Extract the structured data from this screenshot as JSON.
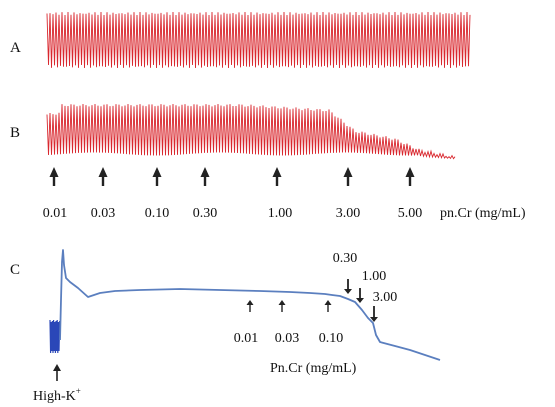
{
  "panels": {
    "a": {
      "label": "A"
    },
    "b": {
      "label": "B"
    },
    "c": {
      "label": "C"
    }
  },
  "colors": {
    "trace_red": "#d9272e",
    "trace_blue": "#5b7fbf",
    "burst_blue": "#2a47b8",
    "arrow": "#222222"
  },
  "chart_data": [
    {
      "type": "line",
      "panel": "A",
      "description_kind": "contraction trace",
      "relative_amplitude": [
        1,
        1
      ],
      "time": [
        0,
        1
      ]
    },
    {
      "type": "line",
      "panel": "B",
      "doses": [
        "0.01",
        "0.03",
        "0.10",
        "0.30",
        "1.00",
        "3.00",
        "5.00"
      ],
      "unit_label": "pn.Cr (mg/mL)",
      "relative_amplitude_after_dose": [
        1.0,
        1.0,
        1.0,
        1.0,
        0.95,
        0.55,
        0.2
      ]
    },
    {
      "type": "line",
      "panel": "C",
      "stimulus_label": "High-K",
      "stimulus_superscript": "+",
      "doses": [
        "0.01",
        "0.03",
        "0.10",
        "0.30",
        "1.00",
        "3.00"
      ],
      "unit_label": "Pn.Cr (mg/mL)",
      "relative_tension_after_dose": [
        0.95,
        0.94,
        0.9,
        0.82,
        0.72,
        0.4
      ]
    }
  ]
}
